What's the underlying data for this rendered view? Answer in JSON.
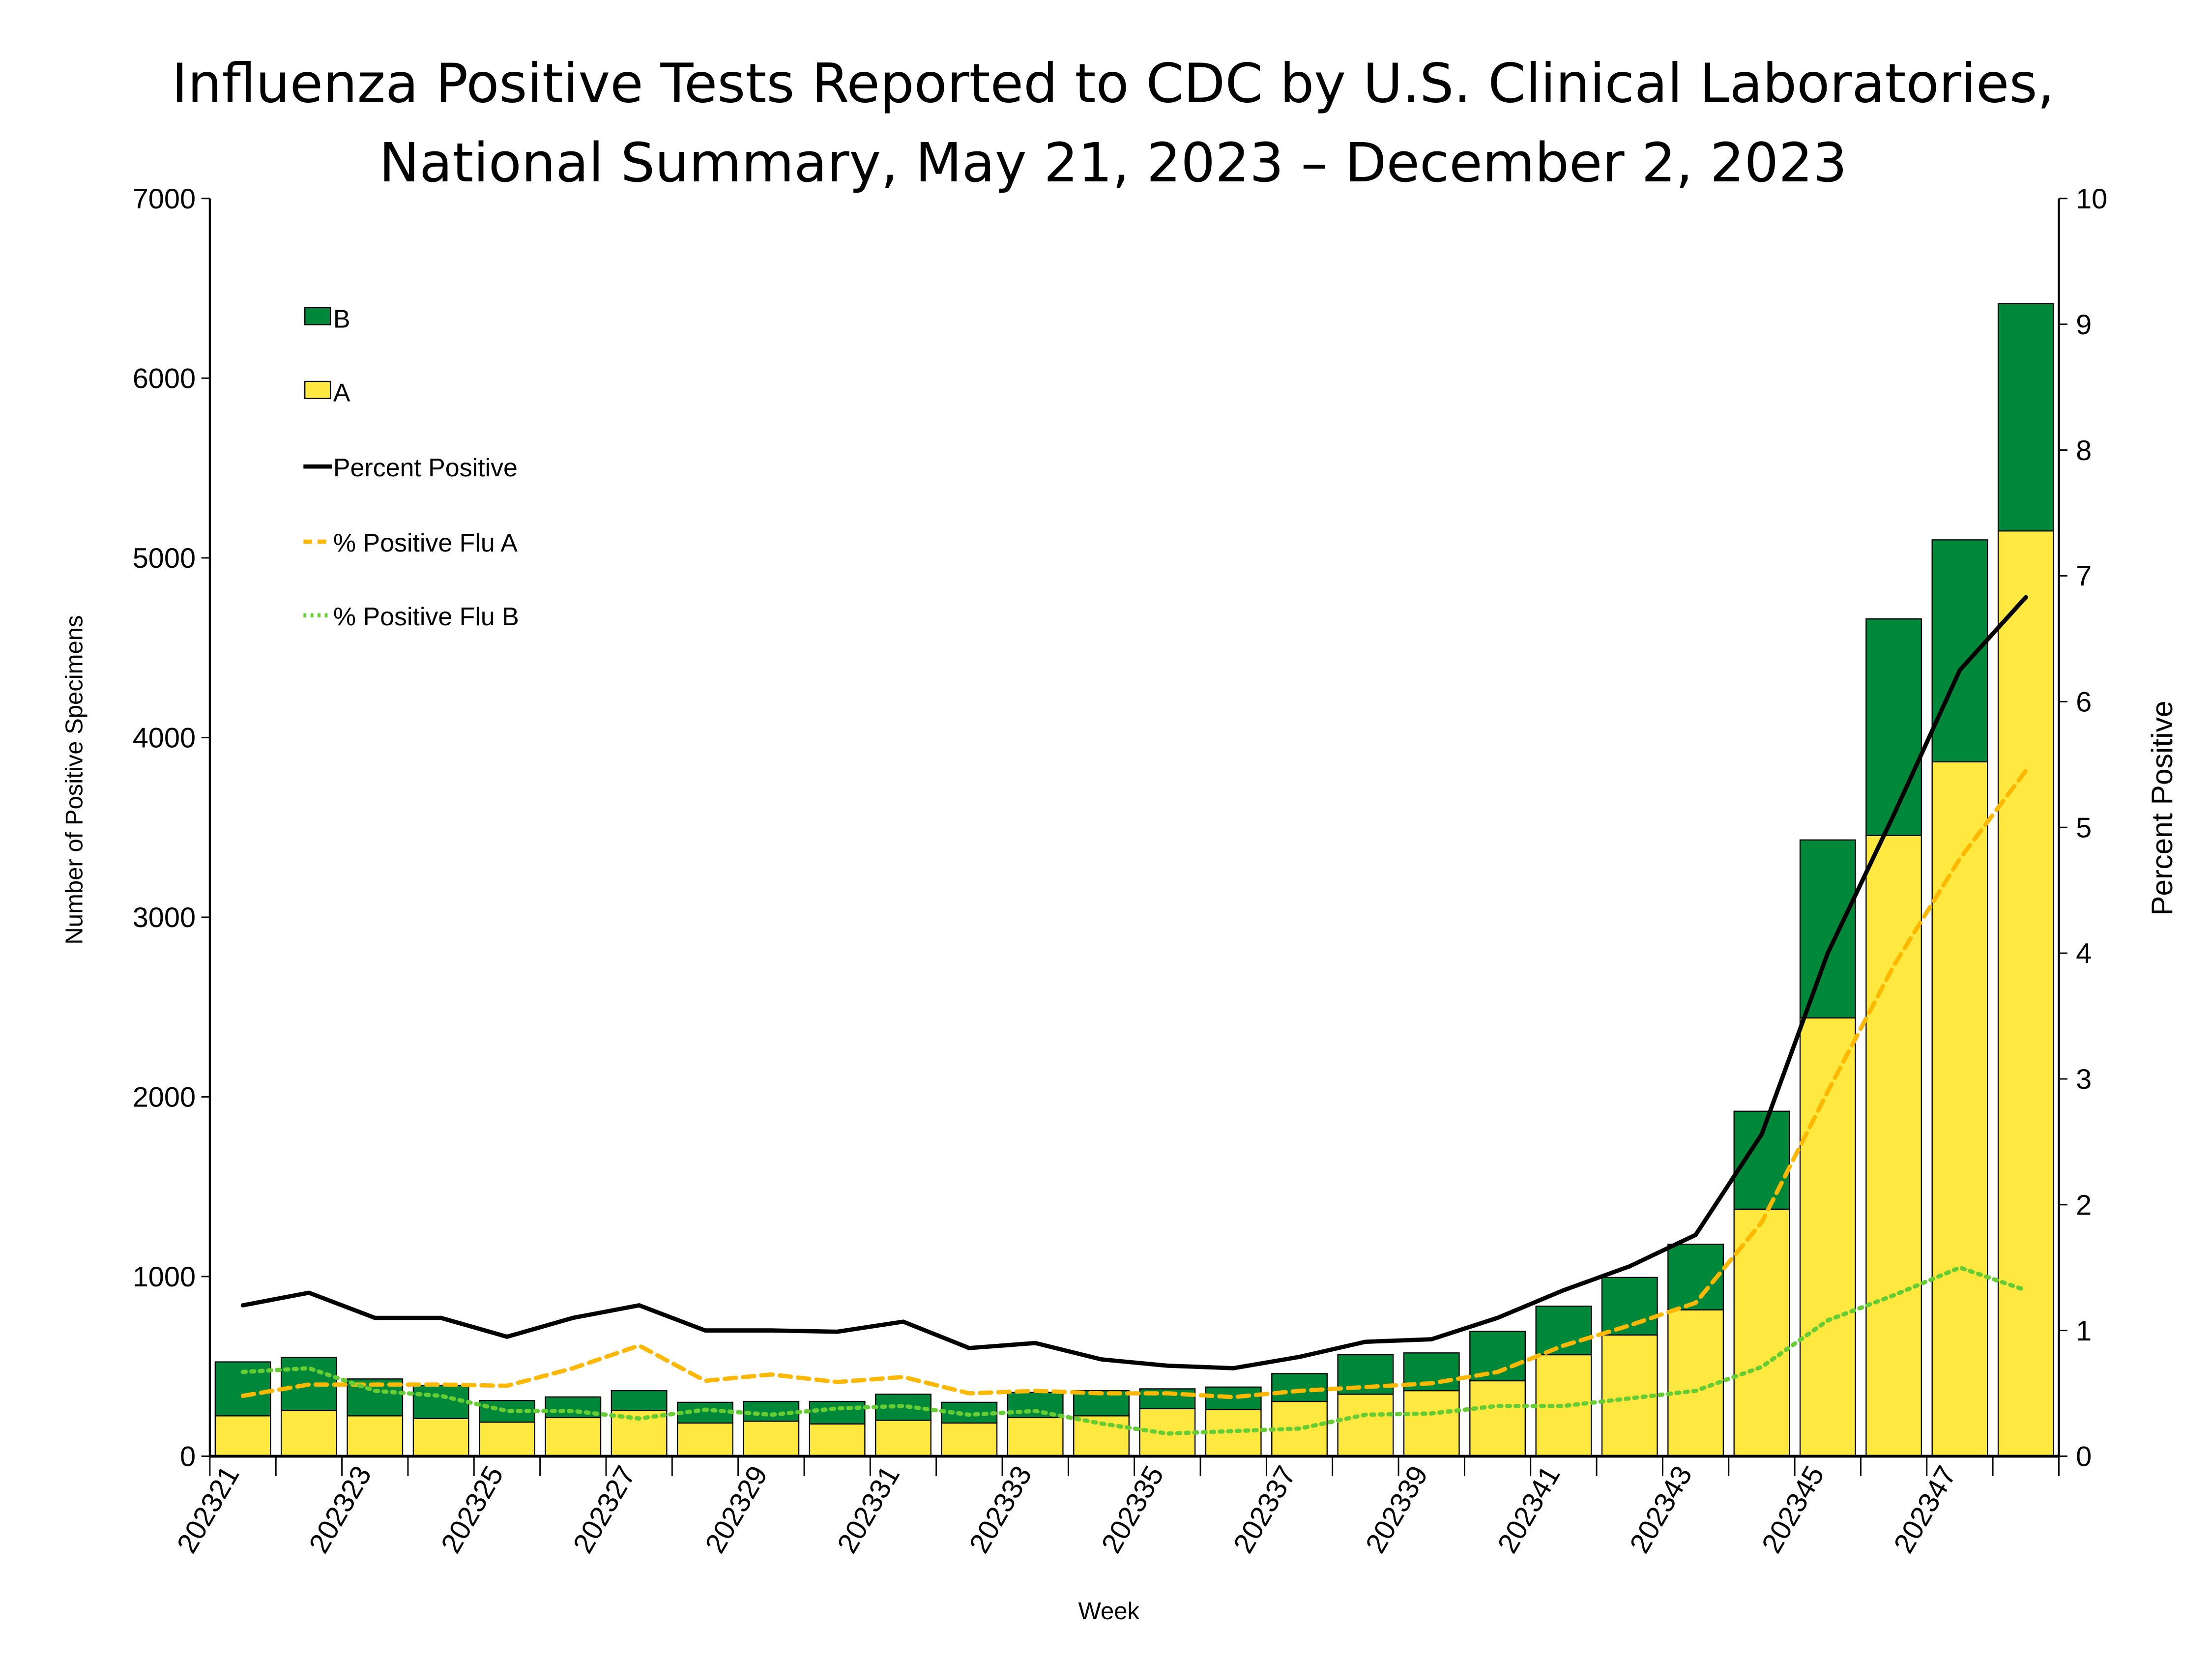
{
  "chart_data": {
    "type": "bar",
    "title": [
      "Influenza Positive Tests Reported to CDC by U.S. Clinical Laboratories,",
      "National Summary, May 21, 2023 – December 2, 2023"
    ],
    "xlabel": "Week",
    "ylabel": "Number of Positive Specimens",
    "y2label": "Percent Positive",
    "ylim": [
      0,
      7000
    ],
    "y2lim": [
      0,
      10
    ],
    "yticks": [
      "0",
      "1000",
      "2000",
      "3000",
      "4000",
      "5000",
      "6000",
      "7000"
    ],
    "y2ticks": [
      "0",
      "1",
      "2",
      "3",
      "4",
      "5",
      "6",
      "7",
      "8",
      "9",
      "10"
    ],
    "categories": [
      "202321",
      "202322",
      "202323",
      "202324",
      "202325",
      "202326",
      "202327",
      "202328",
      "202329",
      "202330",
      "202331",
      "202332",
      "202333",
      "202334",
      "202335",
      "202336",
      "202337",
      "202338",
      "202339",
      "202340",
      "202341",
      "202342",
      "202343",
      "202344",
      "202345",
      "202346",
      "202347",
      "202348"
    ],
    "xtick_labels": [
      "202321",
      "202323",
      "202325",
      "202327",
      "202329",
      "202331",
      "202333",
      "202335",
      "202337",
      "202339",
      "202341",
      "202343",
      "202345",
      "202347"
    ],
    "legend_position": "top-left",
    "series": [
      {
        "name": "A",
        "kind": "stacked-bar",
        "color": "#FFE83F",
        "values": [
          225,
          255,
          225,
          210,
          190,
          215,
          255,
          185,
          195,
          180,
          200,
          185,
          215,
          225,
          265,
          260,
          305,
          345,
          365,
          420,
          565,
          675,
          815,
          1375,
          2440,
          3455,
          3865,
          5150
        ]
      },
      {
        "name": "B",
        "kind": "stacked-bar",
        "color": "#00883A",
        "values": [
          300,
          295,
          205,
          185,
          120,
          115,
          110,
          115,
          110,
          125,
          145,
          115,
          140,
          140,
          110,
          125,
          155,
          220,
          210,
          275,
          270,
          320,
          365,
          545,
          990,
          1205,
          1235,
          1265
        ]
      },
      {
        "name": "Percent Positive",
        "kind": "line",
        "axis": "right",
        "color": "#000000",
        "dash": "solid",
        "values": [
          1.2,
          1.3,
          1.1,
          1.1,
          0.95,
          1.1,
          1.2,
          1.0,
          1.0,
          0.99,
          1.07,
          0.86,
          0.9,
          0.77,
          0.72,
          0.7,
          0.79,
          0.91,
          0.93,
          1.1,
          1.32,
          1.51,
          1.76,
          2.56,
          4.0,
          5.1,
          6.25,
          6.83
        ]
      },
      {
        "name": "% Positive Flu A",
        "kind": "line",
        "axis": "right",
        "color": "#FFB800",
        "dash": "dashed",
        "values": [
          0.48,
          0.57,
          0.57,
          0.57,
          0.56,
          0.7,
          0.88,
          0.6,
          0.65,
          0.59,
          0.63,
          0.5,
          0.52,
          0.5,
          0.5,
          0.47,
          0.52,
          0.55,
          0.58,
          0.67,
          0.88,
          1.04,
          1.22,
          1.86,
          2.9,
          3.9,
          4.75,
          5.45
        ]
      },
      {
        "name": "% Positive Flu B",
        "kind": "line",
        "axis": "right",
        "color": "#66CC33",
        "dash": "dotted",
        "values": [
          0.67,
          0.7,
          0.52,
          0.48,
          0.36,
          0.36,
          0.3,
          0.37,
          0.33,
          0.38,
          0.4,
          0.33,
          0.36,
          0.26,
          0.18,
          0.2,
          0.22,
          0.33,
          0.34,
          0.4,
          0.4,
          0.46,
          0.52,
          0.71,
          1.08,
          1.28,
          1.5,
          1.32
        ]
      }
    ]
  }
}
